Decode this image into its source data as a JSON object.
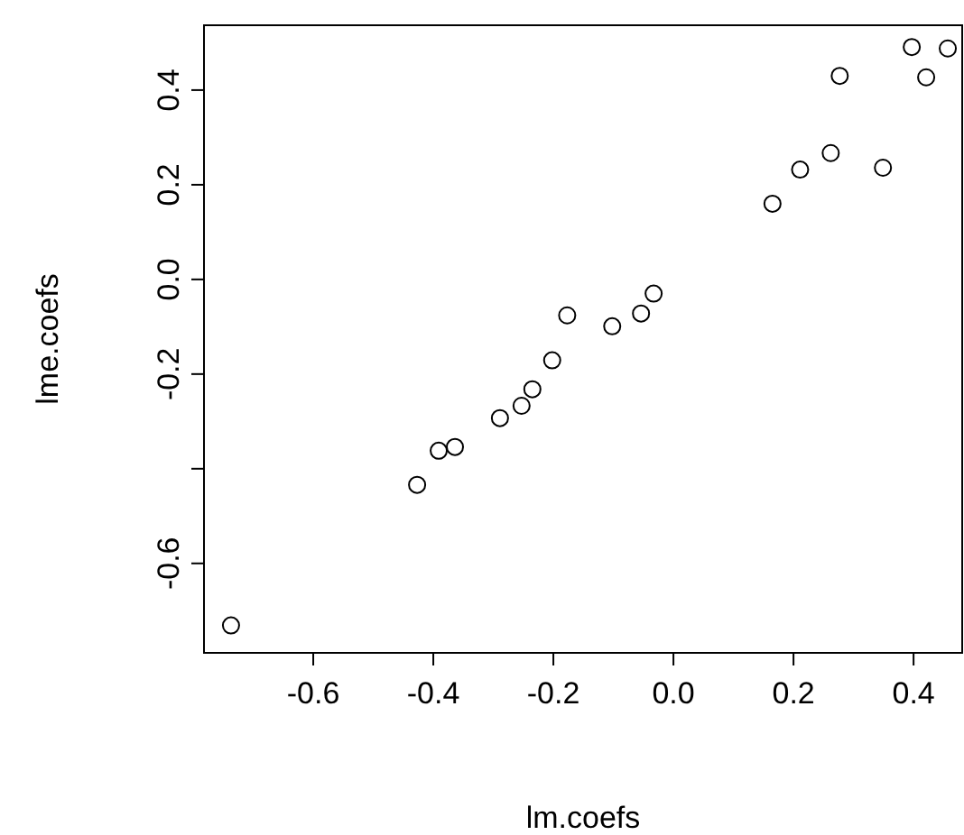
{
  "chart_data": {
    "type": "scatter",
    "xlabel": "lm.coefs",
    "ylabel": "lme.coefs",
    "marker": "circle",
    "grid": false,
    "x": [
      -0.737,
      -0.427,
      -0.391,
      -0.364,
      -0.289,
      -0.253,
      -0.235,
      -0.202,
      -0.177,
      -0.102,
      -0.054,
      -0.033,
      0.165,
      0.211,
      0.262,
      0.277,
      0.349,
      0.397,
      0.421,
      0.457
    ],
    "series": [
      {
        "color": "#000000",
        "values": [
          -0.731,
          -0.434,
          -0.362,
          -0.354,
          -0.293,
          -0.267,
          -0.232,
          -0.171,
          -0.076,
          -0.099,
          -0.072,
          -0.03,
          0.16,
          0.232,
          0.267,
          0.43,
          0.236,
          0.491,
          0.427,
          0.488
        ]
      }
    ],
    "xlim": [
      -0.782,
      0.481
    ],
    "ylim": [
      -0.789,
      0.537
    ],
    "xticks": [
      {
        "value": -0.6,
        "label": "-0.6"
      },
      {
        "value": -0.4,
        "label": "-0.4"
      },
      {
        "value": -0.2,
        "label": "-0.2"
      },
      {
        "value": 0,
        "label": "0.0"
      },
      {
        "value": 0.2,
        "label": "0.2"
      },
      {
        "value": 0.4,
        "label": "0.4"
      }
    ],
    "yticks": [
      {
        "value": -0.6,
        "label": "-0.6"
      },
      {
        "value": -0.4,
        "label": null
      },
      {
        "value": -0.2,
        "label": "-0.2"
      },
      {
        "value": 0,
        "label": "0.0"
      },
      {
        "value": 0.2,
        "label": "0.2"
      },
      {
        "value": 0.4,
        "label": "0.4"
      }
    ]
  }
}
